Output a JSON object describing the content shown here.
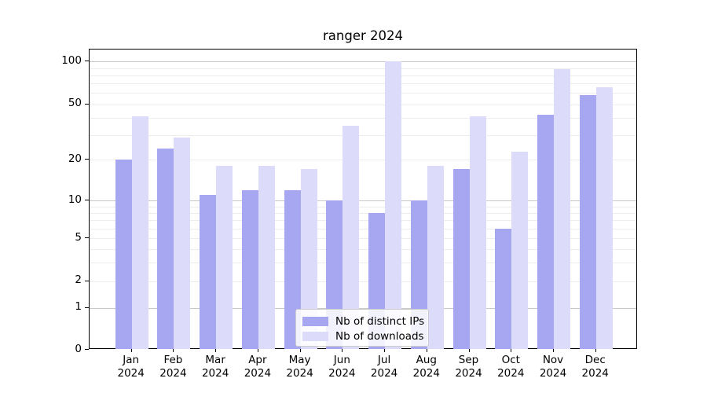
{
  "chart_data": {
    "type": "bar",
    "title": "ranger 2024",
    "categories": [
      "Jan",
      "Feb",
      "Mar",
      "Apr",
      "May",
      "Jun",
      "Jul",
      "Aug",
      "Sep",
      "Oct",
      "Nov",
      "Dec"
    ],
    "category_year": "2024",
    "series": [
      {
        "name": "Nb of distinct IPs",
        "color": "#a6a6f1",
        "values": [
          20,
          24,
          11,
          12,
          12,
          10,
          8,
          10,
          17,
          6,
          42,
          58
        ]
      },
      {
        "name": "Nb of downloads",
        "color": "#dcdcfa",
        "values": [
          41,
          29,
          18,
          18,
          17,
          35,
          100,
          18,
          41,
          23,
          88,
          66
        ]
      }
    ],
    "yscale": "symlog",
    "ylim": [
      0,
      100
    ],
    "yticks": [
      0,
      1,
      2,
      5,
      10,
      20,
      50,
      100
    ],
    "minor_gridlines": [
      2,
      3,
      4,
      5,
      6,
      7,
      8,
      9,
      20,
      30,
      40,
      50,
      60,
      70,
      80,
      90
    ],
    "major_gridlines": [
      1,
      10,
      100
    ],
    "grid": true,
    "legend_position": "lower center",
    "legend": [
      "Nb of distinct IPs",
      "Nb of downloads"
    ]
  }
}
